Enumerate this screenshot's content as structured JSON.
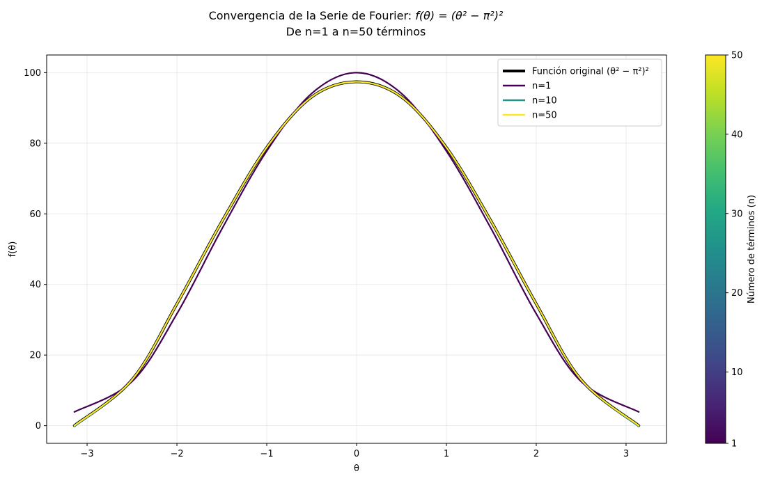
{
  "chart_data": {
    "type": "line",
    "title": {
      "prefix": "Convergencia de la Serie de Fourier: ",
      "formula": "f(θ) = (θ² − π²)²",
      "line2": "De n=1 a n=50 términos"
    },
    "xlabel": "θ",
    "ylabel": "f(θ)",
    "xlim": [
      -3.45,
      3.45
    ],
    "ylim": [
      -5,
      105
    ],
    "xticks": [
      -3,
      -2,
      -1,
      0,
      1,
      2,
      3
    ],
    "xtick_labels": [
      "−3",
      "−2",
      "−1",
      "0",
      "1",
      "2",
      "3"
    ],
    "yticks": [
      0,
      20,
      40,
      60,
      80,
      100
    ],
    "ytick_labels": [
      "0",
      "20",
      "40",
      "60",
      "80",
      "100"
    ],
    "grid": true,
    "legend_position": "top-right",
    "series": [
      {
        "name": "Función original (θ² − π²)²",
        "color": "#000000",
        "role": "original",
        "x": [
          -3.1416,
          -2.5,
          -2,
          -1.5,
          -1,
          -0.5,
          0,
          0.5,
          1,
          1.5,
          2,
          2.5,
          3.1416
        ],
        "y": [
          0,
          13.0,
          34.5,
          57.8,
          78.8,
          93.1,
          97.4,
          93.1,
          78.8,
          57.8,
          34.5,
          13.0,
          0
        ]
      },
      {
        "name": "n=1",
        "color": "#440154",
        "x": [
          -3.1416,
          -2.5,
          -2,
          -1.5,
          -1,
          -0.5,
          0,
          0.5,
          1,
          1.5,
          2,
          2.5,
          3.1416
        ],
        "y": [
          3.9,
          12.5,
          31.7,
          55.7,
          77.8,
          94.1,
          100.0,
          94.1,
          77.8,
          55.7,
          31.7,
          12.5,
          3.9
        ]
      },
      {
        "name": "n=10",
        "color": "#21918c",
        "x": [
          -3.1416,
          -2.5,
          -2,
          -1.5,
          -1,
          -0.5,
          0,
          0.5,
          1,
          1.5,
          2,
          2.5,
          3.1416
        ],
        "y": [
          -0.2,
          13.0,
          34.5,
          57.8,
          78.8,
          93.1,
          97.4,
          93.1,
          78.8,
          57.8,
          34.5,
          13.0,
          -0.2
        ]
      },
      {
        "name": "n=50",
        "color": "#fde725",
        "x": [
          -3.1416,
          -2.5,
          -2,
          -1.5,
          -1,
          -0.5,
          0,
          0.5,
          1,
          1.5,
          2,
          2.5,
          3.1416
        ],
        "y": [
          0,
          13.0,
          34.5,
          57.8,
          78.8,
          93.1,
          97.4,
          93.1,
          78.8,
          57.8,
          34.5,
          13.0,
          0
        ]
      }
    ],
    "colorbar": {
      "label": "Número de términos (n)",
      "range": [
        1,
        50
      ],
      "ticks": [
        1,
        10,
        20,
        30,
        40,
        50
      ],
      "tick_labels": [
        "1",
        "10",
        "20",
        "30",
        "40",
        "50"
      ],
      "colormap": "viridis",
      "stops": [
        "#440154",
        "#482475",
        "#414487",
        "#355f8d",
        "#2a788e",
        "#21918c",
        "#22a884",
        "#44bf70",
        "#7ad151",
        "#bddf26",
        "#fde725"
      ]
    }
  }
}
